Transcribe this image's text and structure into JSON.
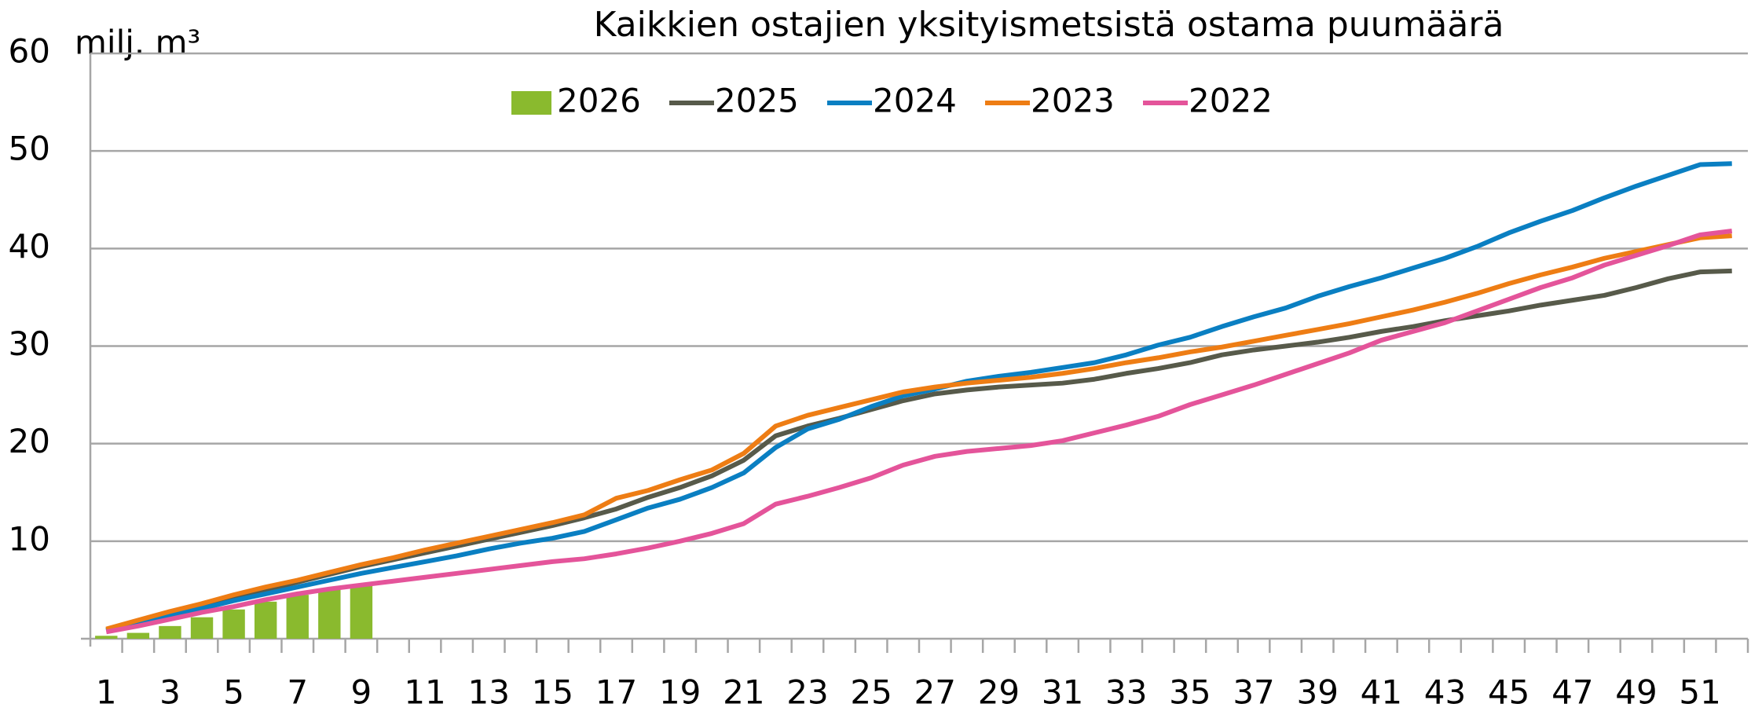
{
  "chart_data": {
    "type": "line",
    "title": "Kaikkien ostajien yksityismetsistä ostama puumäärä",
    "y_label": "milj. m³",
    "categories": [
      1,
      null,
      3,
      null,
      5,
      null,
      7,
      null,
      9,
      null,
      11,
      null,
      13,
      null,
      15,
      null,
      17,
      null,
      19,
      null,
      21,
      null,
      23,
      null,
      25,
      null,
      27,
      null,
      29,
      null,
      31,
      null,
      33,
      null,
      35,
      null,
      37,
      null,
      39,
      null,
      41,
      null,
      43,
      null,
      45,
      null,
      47,
      null,
      49,
      null,
      51,
      null
    ],
    "ylim": [
      0,
      60
    ],
    "yticks": [
      10,
      20,
      30,
      40,
      50,
      60
    ],
    "grid": true,
    "legend": "top",
    "series": [
      {
        "name": "2026",
        "type": "bar",
        "color": "#8aba2e",
        "values": [
          0.3,
          0.6,
          1.3,
          2.2,
          3.0,
          3.8,
          4.5,
          5.0,
          5.5,
          null,
          null,
          null,
          null,
          null,
          null,
          null,
          null,
          null,
          null,
          null,
          null,
          null,
          null,
          null,
          null,
          null,
          null,
          null,
          null,
          null,
          null,
          null,
          null,
          null,
          null,
          null,
          null,
          null,
          null,
          null,
          null,
          null,
          null,
          null,
          null,
          null,
          null,
          null,
          null,
          null,
          null,
          null
        ]
      },
      {
        "name": "2025",
        "type": "line",
        "color": "#575a4a",
        "values": [
          0.9,
          1.8,
          2.6,
          3.3,
          4.2,
          5.0,
          5.8,
          6.6,
          7.4,
          8.1,
          8.8,
          9.5,
          10.2,
          10.9,
          11.6,
          12.4,
          13.3,
          14.5,
          15.5,
          16.7,
          18.3,
          20.8,
          21.8,
          22.6,
          23.5,
          24.4,
          25.1,
          25.5,
          25.8,
          26.0,
          26.2,
          26.6,
          27.2,
          27.7,
          28.3,
          29.1,
          29.6,
          30.0,
          30.4,
          30.9,
          31.5,
          32.0,
          32.6,
          33.1,
          33.6,
          34.2,
          34.7,
          35.2,
          36.0,
          36.9,
          37.6,
          37.7
        ]
      },
      {
        "name": "2024",
        "type": "line",
        "color": "#0a7fc2",
        "values": [
          0.8,
          1.6,
          2.4,
          3.1,
          3.9,
          4.6,
          5.3,
          6.0,
          6.7,
          7.3,
          7.9,
          8.5,
          9.2,
          9.8,
          10.3,
          11.0,
          12.2,
          13.4,
          14.3,
          15.5,
          17.0,
          19.6,
          21.5,
          22.5,
          23.8,
          24.9,
          25.6,
          26.4,
          26.9,
          27.3,
          27.8,
          28.3,
          29.1,
          30.1,
          30.9,
          32.0,
          33.0,
          33.9,
          35.1,
          36.1,
          37.0,
          38.0,
          39.0,
          40.2,
          41.6,
          42.8,
          43.9,
          45.2,
          46.4,
          47.5,
          48.6,
          48.7
        ]
      },
      {
        "name": "2023",
        "type": "line",
        "color": "#ee7d14",
        "values": [
          1.0,
          1.9,
          2.8,
          3.6,
          4.5,
          5.3,
          6.0,
          6.8,
          7.6,
          8.3,
          9.1,
          9.8,
          10.5,
          11.2,
          11.9,
          12.7,
          14.4,
          15.2,
          16.3,
          17.3,
          19.0,
          21.8,
          22.9,
          23.7,
          24.5,
          25.3,
          25.8,
          26.2,
          26.5,
          26.8,
          27.2,
          27.7,
          28.3,
          28.8,
          29.4,
          29.9,
          30.5,
          31.1,
          31.7,
          32.3,
          33.0,
          33.7,
          34.5,
          35.4,
          36.4,
          37.3,
          38.1,
          39.0,
          39.7,
          40.4,
          41.1,
          41.3
        ]
      },
      {
        "name": "2022",
        "type": "line",
        "color": "#e4549a",
        "values": [
          0.7,
          1.3,
          2.0,
          2.7,
          3.3,
          4.0,
          4.6,
          5.1,
          5.5,
          5.9,
          6.3,
          6.7,
          7.1,
          7.5,
          7.9,
          8.2,
          8.7,
          9.3,
          10.0,
          10.8,
          11.8,
          13.8,
          14.6,
          15.5,
          16.5,
          17.8,
          18.7,
          19.2,
          19.5,
          19.8,
          20.3,
          21.1,
          21.9,
          22.8,
          24.0,
          25.0,
          26.0,
          27.1,
          28.2,
          29.3,
          30.6,
          31.5,
          32.4,
          33.6,
          34.8,
          36.0,
          37.0,
          38.3,
          39.3,
          40.3,
          41.4,
          41.8
        ]
      }
    ]
  }
}
